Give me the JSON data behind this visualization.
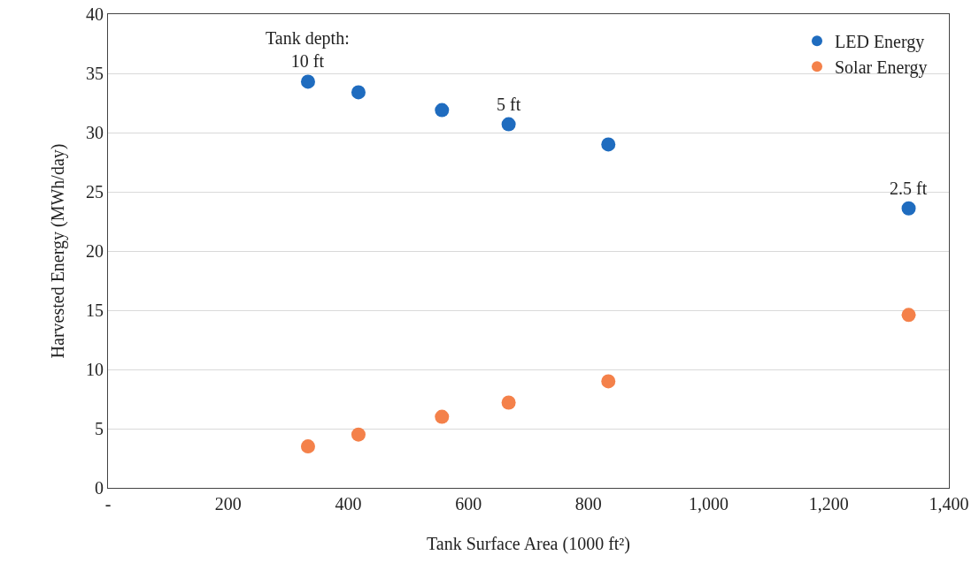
{
  "chart_data": {
    "type": "scatter",
    "xlabel": "Tank Surface Area (1000 ft²)",
    "ylabel": "Harvested Energy (MWh/day)",
    "x": [
      333,
      417,
      556,
      667,
      833,
      1333
    ],
    "series": [
      {
        "name": "LED Energy",
        "color": "#1f6cbf",
        "values": [
          34.3,
          33.4,
          31.9,
          30.7,
          29.0,
          23.6
        ]
      },
      {
        "name": "Solar Energy",
        "color": "#f4814a",
        "values": [
          3.5,
          4.5,
          6.0,
          7.2,
          9.0,
          14.6
        ]
      }
    ],
    "xlim": [
      0,
      1400
    ],
    "xticks": [
      {
        "value": 0,
        "label": "-"
      },
      200,
      400,
      600,
      800,
      {
        "value": 1000,
        "label": "1,000"
      },
      {
        "value": 1200,
        "label": "1,200"
      },
      {
        "value": 1400,
        "label": "1,400"
      }
    ],
    "ylim": [
      0,
      40
    ],
    "yticks": [
      0,
      5,
      10,
      15,
      20,
      25,
      30,
      35,
      40
    ],
    "annotations": [
      {
        "text": "Tank depth:\n10 ft",
        "x": 333,
        "y": 34.3
      },
      {
        "text": "5 ft",
        "x": 667,
        "y": 30.7
      },
      {
        "text": "2.5 ft",
        "x": 1333,
        "y": 23.6
      }
    ],
    "grid": "y",
    "legend": "top right",
    "marker": "circle"
  }
}
